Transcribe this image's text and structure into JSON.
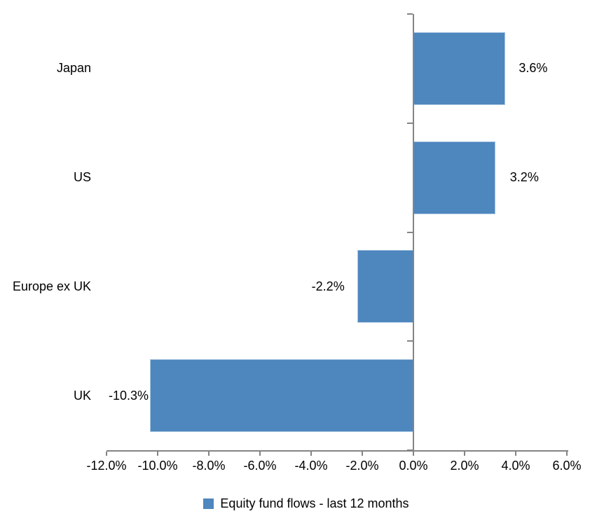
{
  "chart_data": {
    "type": "bar",
    "orientation": "horizontal",
    "title": "",
    "xlabel": "",
    "ylabel": "",
    "categories": [
      "Japan",
      "US",
      "Europe ex UK",
      "UK"
    ],
    "values": [
      3.6,
      3.2,
      -2.2,
      -10.3
    ],
    "value_labels": [
      "3.6%",
      "3.2%",
      "-2.2%",
      "-10.3%"
    ],
    "legend": "Equity fund flows - last 12 months",
    "legend_position": "bottom",
    "xlim": [
      -12,
      6
    ],
    "x_ticks": [
      -12,
      -10,
      -8,
      -6,
      -4,
      -2,
      0,
      2,
      4,
      6
    ],
    "x_tick_labels": [
      "-12.0%",
      "-10.0%",
      "-8.0%",
      "-6.0%",
      "-4.0%",
      "-2.0%",
      "0.0%",
      "2.0%",
      "4.0%",
      "6.0%"
    ],
    "grid": false,
    "colors": {
      "bar": "#4E86BE",
      "bar_border": "#A9C6E2",
      "axis": "#848484",
      "text": "#000000",
      "background": "#FFFFFF"
    }
  }
}
